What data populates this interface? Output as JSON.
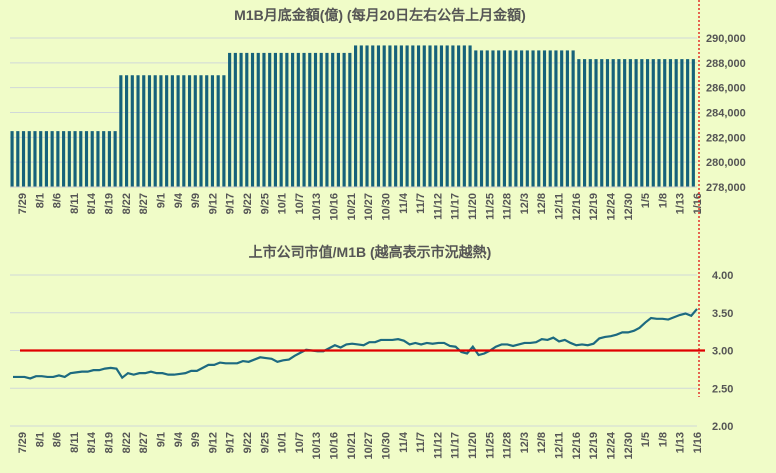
{
  "colors": {
    "bar": "#16627a",
    "line": "#1d6a80",
    "ref": "#e00000",
    "grid": "#d0d8d8",
    "bg": "#f0fcc8"
  },
  "chart_data": [
    {
      "type": "bar",
      "title": "M1B月底金額(億) (每月20日左右公告上月金額)",
      "ylim": [
        278000,
        290000
      ],
      "yticks": [
        "278,000",
        "280,000",
        "282,000",
        "284,000",
        "286,000",
        "288,000",
        "290,000"
      ],
      "groups": [
        {
          "value": 282500,
          "count": 19
        },
        {
          "value": 287000,
          "count": 19
        },
        {
          "value": 288800,
          "count": 22
        },
        {
          "value": 289400,
          "count": 21
        },
        {
          "value": 289000,
          "count": 18
        },
        {
          "value": 288300,
          "count": 21
        }
      ],
      "xticks": [
        "7/29",
        "8/1",
        "8/6",
        "8/11",
        "8/14",
        "8/19",
        "8/22",
        "8/27",
        "9/1",
        "9/4",
        "9/9",
        "9/12",
        "9/17",
        "9/22",
        "9/25",
        "10/1",
        "10/7",
        "10/13",
        "10/16",
        "10/21",
        "10/27",
        "10/30",
        "11/4",
        "11/7",
        "11/12",
        "11/17",
        "11/20",
        "11/25",
        "11/28",
        "12/3",
        "12/8",
        "12/11",
        "12/16",
        "12/19",
        "12/24",
        "12/30",
        "1/5",
        "1/8",
        "1/13",
        "1/16"
      ]
    },
    {
      "type": "line",
      "title": "上市公司市值/M1B (越高表示市況越熱)",
      "ylim": [
        2.0,
        4.0
      ],
      "yticks": [
        "2.00",
        "2.50",
        "3.00",
        "3.50",
        "4.00"
      ],
      "reference_line": 3.0,
      "values": [
        2.65,
        2.65,
        2.65,
        2.63,
        2.66,
        2.66,
        2.65,
        2.65,
        2.67,
        2.65,
        2.7,
        2.71,
        2.72,
        2.72,
        2.74,
        2.74,
        2.76,
        2.77,
        2.76,
        2.64,
        2.7,
        2.68,
        2.7,
        2.7,
        2.72,
        2.7,
        2.7,
        2.68,
        2.68,
        2.69,
        2.7,
        2.73,
        2.73,
        2.77,
        2.81,
        2.81,
        2.84,
        2.83,
        2.83,
        2.83,
        2.86,
        2.85,
        2.88,
        2.91,
        2.9,
        2.89,
        2.85,
        2.87,
        2.88,
        2.93,
        2.97,
        3.01,
        3.0,
        2.99,
        2.99,
        3.03,
        3.07,
        3.04,
        3.08,
        3.09,
        3.08,
        3.07,
        3.11,
        3.11,
        3.14,
        3.14,
        3.14,
        3.15,
        3.13,
        3.08,
        3.1,
        3.08,
        3.1,
        3.09,
        3.1,
        3.1,
        3.06,
        3.05,
        2.98,
        2.96,
        3.05,
        2.94,
        2.96,
        3.0,
        3.05,
        3.08,
        3.08,
        3.06,
        3.08,
        3.1,
        3.1,
        3.11,
        3.15,
        3.14,
        3.17,
        3.12,
        3.14,
        3.1,
        3.07,
        3.08,
        3.07,
        3.09,
        3.16,
        3.18,
        3.19,
        3.21,
        3.24,
        3.24,
        3.26,
        3.3,
        3.37,
        3.43,
        3.42,
        3.42,
        3.41,
        3.44,
        3.47,
        3.49,
        3.46,
        3.55
      ],
      "xticks": [
        "7/29",
        "8/1",
        "8/6",
        "8/11",
        "8/14",
        "8/19",
        "8/22",
        "8/27",
        "9/1",
        "9/4",
        "9/9",
        "9/12",
        "9/17",
        "9/22",
        "9/25",
        "10/1",
        "10/7",
        "10/13",
        "10/16",
        "10/21",
        "10/27",
        "10/30",
        "11/4",
        "11/7",
        "11/12",
        "11/17",
        "11/20",
        "11/25",
        "11/28",
        "12/3",
        "12/8",
        "12/11",
        "12/16",
        "12/19",
        "12/24",
        "12/30",
        "1/5",
        "1/8",
        "1/13",
        "1/16"
      ]
    }
  ]
}
